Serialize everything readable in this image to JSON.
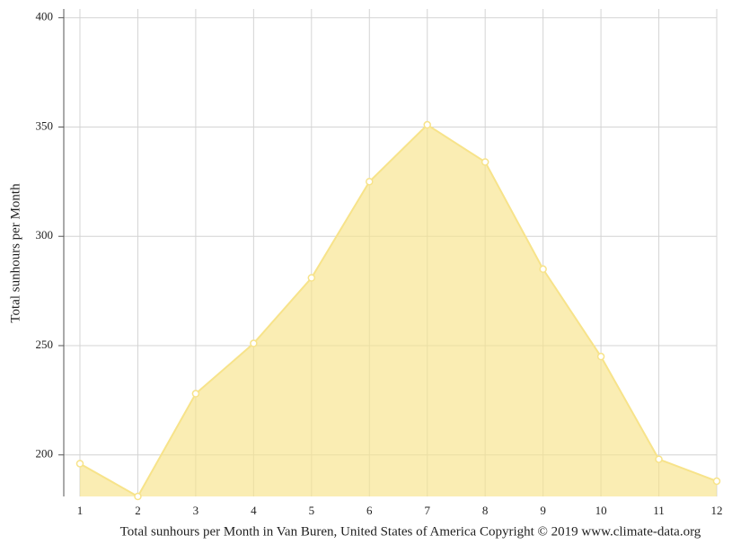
{
  "chart_data": {
    "type": "area",
    "title": "Total sunhours per Month in Van Buren, United States of America Copyright © 2019 www.climate-data.org",
    "ylabel": "Total sunhours per Month",
    "x": [
      1,
      2,
      3,
      4,
      5,
      6,
      7,
      8,
      9,
      10,
      11,
      12
    ],
    "values": [
      196,
      181,
      228,
      251,
      281,
      325,
      351,
      334,
      285,
      245,
      198,
      188
    ],
    "color": "#f7e38a",
    "xlim": [
      1,
      12
    ],
    "xticks": [
      1,
      2,
      3,
      4,
      5,
      6,
      7,
      8,
      9,
      10,
      11,
      12
    ],
    "ylim": [
      181,
      404
    ],
    "yticks": [
      200,
      250,
      300,
      350,
      400
    ],
    "grid": true
  }
}
